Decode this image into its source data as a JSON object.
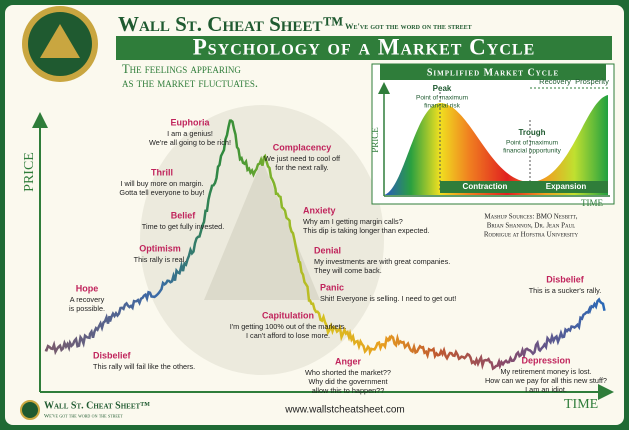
{
  "header": {
    "brand": "Wall St. Cheat Sheet™",
    "tagline": "We've got the word on the street",
    "title": "Psychology of a Market Cycle",
    "subtitle": [
      "The feelings appearing",
      "as the market fluctuates."
    ]
  },
  "axes": {
    "y": "PRICE",
    "x": "TIME"
  },
  "stages": [
    {
      "name": "Euphoria",
      "lines": [
        "I am a genius!",
        "We're all going to be rich!"
      ]
    },
    {
      "name": "Thrill",
      "lines": [
        "I will buy more on margin.",
        "Gotta tell everyone to buy!"
      ]
    },
    {
      "name": "Belief",
      "lines": [
        "Time to get fully invested."
      ]
    },
    {
      "name": "Optimism",
      "lines": [
        "This rally is real."
      ]
    },
    {
      "name": "Hope",
      "lines": [
        "A recovery",
        "is possible."
      ]
    },
    {
      "name": "Disbelief",
      "lines": [
        "This rally will fail like the others."
      ]
    },
    {
      "name": "Complacency",
      "lines": [
        "We just need to cool off",
        "for the next rally."
      ]
    },
    {
      "name": "Anxiety",
      "lines": [
        "Why am I getting margin calls?",
        "This dip is taking longer than expected."
      ]
    },
    {
      "name": "Denial",
      "lines": [
        "My investments are with great companies.",
        "They will come back."
      ]
    },
    {
      "name": "Panic",
      "lines": [
        "Shit! Everyone is selling. I need to get out!"
      ]
    },
    {
      "name": "Capitulation",
      "lines": [
        "I'm getting 100% out of the markets.",
        "I can't afford to lose more."
      ]
    },
    {
      "name": "Anger",
      "lines": [
        "Who shorted the market??",
        "Why did the government",
        "allow this to happen??"
      ]
    },
    {
      "name": "Depression",
      "lines": [
        "My retirement money is lost.",
        "How can we pay for all this new stuff?",
        "I am an idiot."
      ]
    },
    {
      "name": "Disbelief",
      "lines": [
        "This is a sucker's rally."
      ]
    }
  ],
  "inset": {
    "title": "Simplified Market Cycle",
    "y_label": "PRICE",
    "x_label": "TIME",
    "peak": "Peak",
    "peak_note": [
      "Point of maximum",
      "financial risk"
    ],
    "trough": "Trough",
    "trough_note": [
      "Point of maximum",
      "financial opportunity"
    ],
    "contraction": "Contraction",
    "expansion": "Expansion",
    "recovery": "Recovery",
    "prosperity": "Prosperity"
  },
  "sources": [
    "Mashup Sources: BMO Nesbitt,",
    "Brian Shannon, Dr. Jean Paul",
    "Rodrigue at Hofstra University"
  ],
  "footer": {
    "brand": "Wall St. Cheat Sheet™",
    "tagline": "We've got the word on the street",
    "url": "www.wallstcheatsheet.com"
  }
}
